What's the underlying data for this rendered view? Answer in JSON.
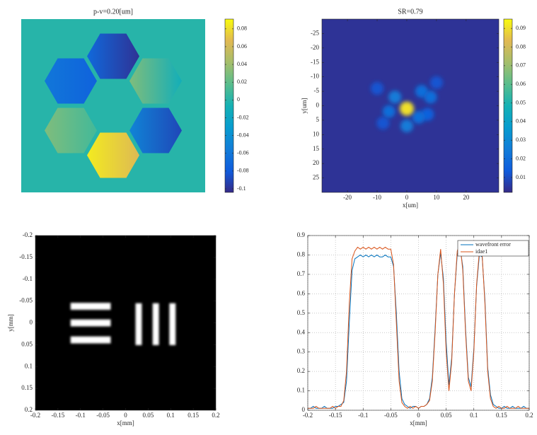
{
  "chart_data": [
    {
      "type": "phase-map",
      "title": "p-v=0.20[um]",
      "background": 0,
      "segments": [
        [
          -0.07,
          -0.1
        ],
        [
          -0.06,
          -0.075
        ],
        [
          0.03,
          -0.01
        ],
        [
          0.03,
          0.01
        ],
        [
          -0.05,
          -0.09
        ],
        [
          0.085,
          0.065
        ]
      ],
      "clim": [
        -0.104,
        0.091
      ],
      "cticks": [
        0.08,
        0.06,
        0.04,
        0.02,
        0,
        -0.02,
        -0.04,
        -0.06,
        -0.08,
        -0.1
      ]
    },
    {
      "type": "psf",
      "title": "SR=0.79",
      "xlabel": "x[um]",
      "ylabel": "y[um]",
      "background": 0.004,
      "xlim": [
        -28.6,
        31
      ],
      "ylim": [
        -30,
        30
      ],
      "y_reversed": true,
      "xticks": [
        -20,
        -10,
        0,
        10,
        20
      ],
      "yticks": [
        -25,
        -20,
        -15,
        -10,
        -5,
        0,
        5,
        10,
        15,
        20,
        25
      ],
      "spots": {
        "x": [
          -10,
          -8,
          10,
          7,
          -4,
          5,
          8,
          -6,
          4,
          0,
          0
        ],
        "y": [
          -6,
          6,
          -8,
          3,
          -3,
          -5,
          -3,
          2,
          4,
          7,
          1
        ],
        "values": [
          0.012,
          0.012,
          0.012,
          0.015,
          0.025,
          0.02,
          0.02,
          0.02,
          0.02,
          0.025,
          0.09
        ]
      },
      "clim": [
        0.002,
        0.095
      ],
      "cticks": [
        0.09,
        0.08,
        0.07,
        0.06,
        0.05,
        0.04,
        0.03,
        0.02,
        0.01
      ]
    },
    {
      "type": "image",
      "xlabel": "x[mm]",
      "ylabel": "y[mm]",
      "xlim": [
        -0.2,
        0.2
      ],
      "ylim": [
        -0.2,
        0.2
      ],
      "y_reversed": true,
      "xticks": [
        -0.2,
        -0.15,
        -0.1,
        -0.05,
        0,
        0.05,
        0.1,
        0.15,
        0.2
      ],
      "yticks": [
        -0.2,
        -0.15,
        -0.1,
        -0.05,
        0,
        0.05,
        0.1,
        0.15,
        0.2
      ],
      "rects": [
        {
          "x": [
            -0.122,
            -0.033
          ],
          "y": [
            -0.046,
            -0.03
          ]
        },
        {
          "x": [
            -0.122,
            -0.033
          ],
          "y": [
            -0.008,
            0.008
          ]
        },
        {
          "x": [
            -0.122,
            -0.033
          ],
          "y": [
            0.031,
            0.047
          ]
        },
        {
          "x": [
            0.022,
            0.036
          ],
          "y": [
            -0.045,
            0.051
          ]
        },
        {
          "x": [
            0.06,
            0.074
          ],
          "y": [
            -0.045,
            0.051
          ]
        },
        {
          "x": [
            0.097,
            0.111
          ],
          "y": [
            -0.045,
            0.051
          ]
        }
      ]
    },
    {
      "type": "line",
      "xlabel": "x[mm]",
      "grid": true,
      "legend_loc": "upper right",
      "xlim": [
        -0.2,
        0.2
      ],
      "ylim": [
        0,
        0.9
      ],
      "xticks": [
        -0.2,
        -0.15,
        -0.1,
        -0.05,
        0,
        0.05,
        0.1,
        0.15,
        0.2
      ],
      "yticks": [
        0,
        0.1,
        0.2,
        0.3,
        0.4,
        0.5,
        0.6,
        0.7,
        0.8,
        0.9
      ],
      "x": [
        -0.2,
        -0.195,
        -0.19,
        -0.185,
        -0.18,
        -0.175,
        -0.17,
        -0.165,
        -0.16,
        -0.155,
        -0.15,
        -0.145,
        -0.14,
        -0.135,
        -0.13,
        -0.125,
        -0.12,
        -0.115,
        -0.11,
        -0.105,
        -0.1,
        -0.095,
        -0.09,
        -0.085,
        -0.08,
        -0.075,
        -0.07,
        -0.065,
        -0.06,
        -0.055,
        -0.05,
        -0.045,
        -0.04,
        -0.035,
        -0.03,
        -0.025,
        -0.02,
        -0.015,
        -0.01,
        -0.005,
        0,
        0.005,
        0.01,
        0.015,
        0.02,
        0.025,
        0.03,
        0.035,
        0.04,
        0.045,
        0.05,
        0.055,
        0.06,
        0.065,
        0.07,
        0.075,
        0.08,
        0.085,
        0.09,
        0.095,
        0.1,
        0.105,
        0.11,
        0.115,
        0.12,
        0.125,
        0.13,
        0.135,
        0.14,
        0.145,
        0.15,
        0.155,
        0.16,
        0.165,
        0.17,
        0.175,
        0.18,
        0.185,
        0.19,
        0.195,
        0.2
      ],
      "series": [
        {
          "name": "wavefront error",
          "color": "#0072bd",
          "values": [
            0.01,
            0.01,
            0.02,
            0.01,
            0.01,
            0.01,
            0.02,
            0.01,
            0.01,
            0.01,
            0.02,
            0.02,
            0.03,
            0.04,
            0.15,
            0.45,
            0.72,
            0.78,
            0.79,
            0.8,
            0.79,
            0.8,
            0.79,
            0.8,
            0.79,
            0.8,
            0.79,
            0.79,
            0.8,
            0.79,
            0.79,
            0.74,
            0.5,
            0.2,
            0.06,
            0.03,
            0.02,
            0.01,
            0.02,
            0.02,
            0.01,
            0.02,
            0.02,
            0.03,
            0.06,
            0.17,
            0.42,
            0.7,
            0.81,
            0.68,
            0.35,
            0.13,
            0.27,
            0.6,
            0.8,
            0.84,
            0.74,
            0.42,
            0.17,
            0.12,
            0.32,
            0.64,
            0.8,
            0.79,
            0.57,
            0.22,
            0.08,
            0.03,
            0.02,
            0.01,
            0.01,
            0.02,
            0.01,
            0.01,
            0.02,
            0.01,
            0.01,
            0.01,
            0.02,
            0.01,
            0.01
          ]
        },
        {
          "name": "idae1",
          "color": "#d95319",
          "values": [
            0.01,
            0.01,
            0.01,
            0.02,
            0.01,
            0.01,
            0.01,
            0.01,
            0.01,
            0.02,
            0.01,
            0.02,
            0.02,
            0.05,
            0.2,
            0.55,
            0.78,
            0.82,
            0.84,
            0.83,
            0.84,
            0.83,
            0.84,
            0.83,
            0.84,
            0.83,
            0.84,
            0.83,
            0.84,
            0.83,
            0.83,
            0.75,
            0.45,
            0.15,
            0.04,
            0.02,
            0.01,
            0.02,
            0.01,
            0.02,
            0.01,
            0.02,
            0.02,
            0.03,
            0.05,
            0.15,
            0.4,
            0.7,
            0.83,
            0.65,
            0.3,
            0.1,
            0.25,
            0.6,
            0.82,
            0.86,
            0.72,
            0.4,
            0.15,
            0.1,
            0.3,
            0.65,
            0.82,
            0.8,
            0.55,
            0.2,
            0.06,
            0.02,
            0.01,
            0.02,
            0.01,
            0.01,
            0.02,
            0.01,
            0.01,
            0.01,
            0.02,
            0.01,
            0.01,
            0.01,
            0.01
          ]
        }
      ]
    }
  ]
}
